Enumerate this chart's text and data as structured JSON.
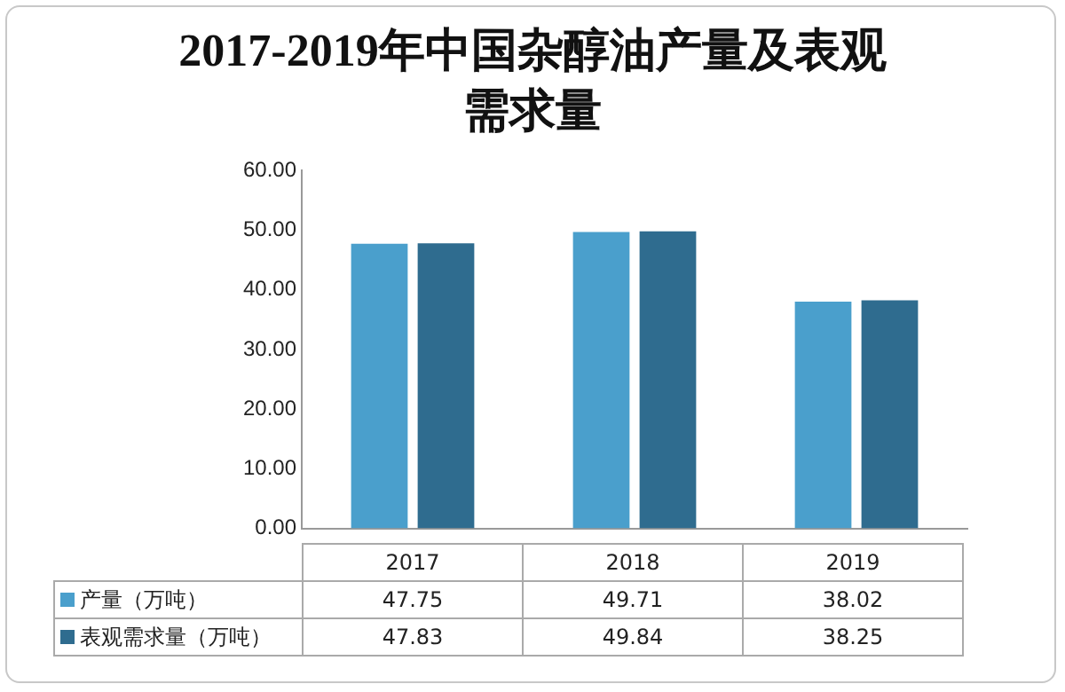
{
  "chart_data": {
    "type": "bar",
    "title": "2017-2019年中国杂醇油产量及表观需求量",
    "categories": [
      "2017",
      "2018",
      "2019"
    ],
    "series": [
      {
        "name": "产量（万吨）",
        "color": "#4a9fcc",
        "values": [
          47.75,
          49.71,
          38.02
        ]
      },
      {
        "name": "表观需求量（万吨）",
        "color": "#2f6c8f",
        "values": [
          47.83,
          49.84,
          38.25
        ]
      }
    ],
    "ylim": [
      0,
      60
    ],
    "yticks": [
      {
        "value": 0,
        "label": "0.00"
      },
      {
        "value": 10,
        "label": "10.00"
      },
      {
        "value": 20,
        "label": "20.00"
      },
      {
        "value": 30,
        "label": "30.00"
      },
      {
        "value": 40,
        "label": "40.00"
      },
      {
        "value": 50,
        "label": "50.00"
      },
      {
        "value": 60,
        "label": "60.00"
      }
    ],
    "grid": false,
    "legend": "bottom",
    "data_labels": true
  }
}
